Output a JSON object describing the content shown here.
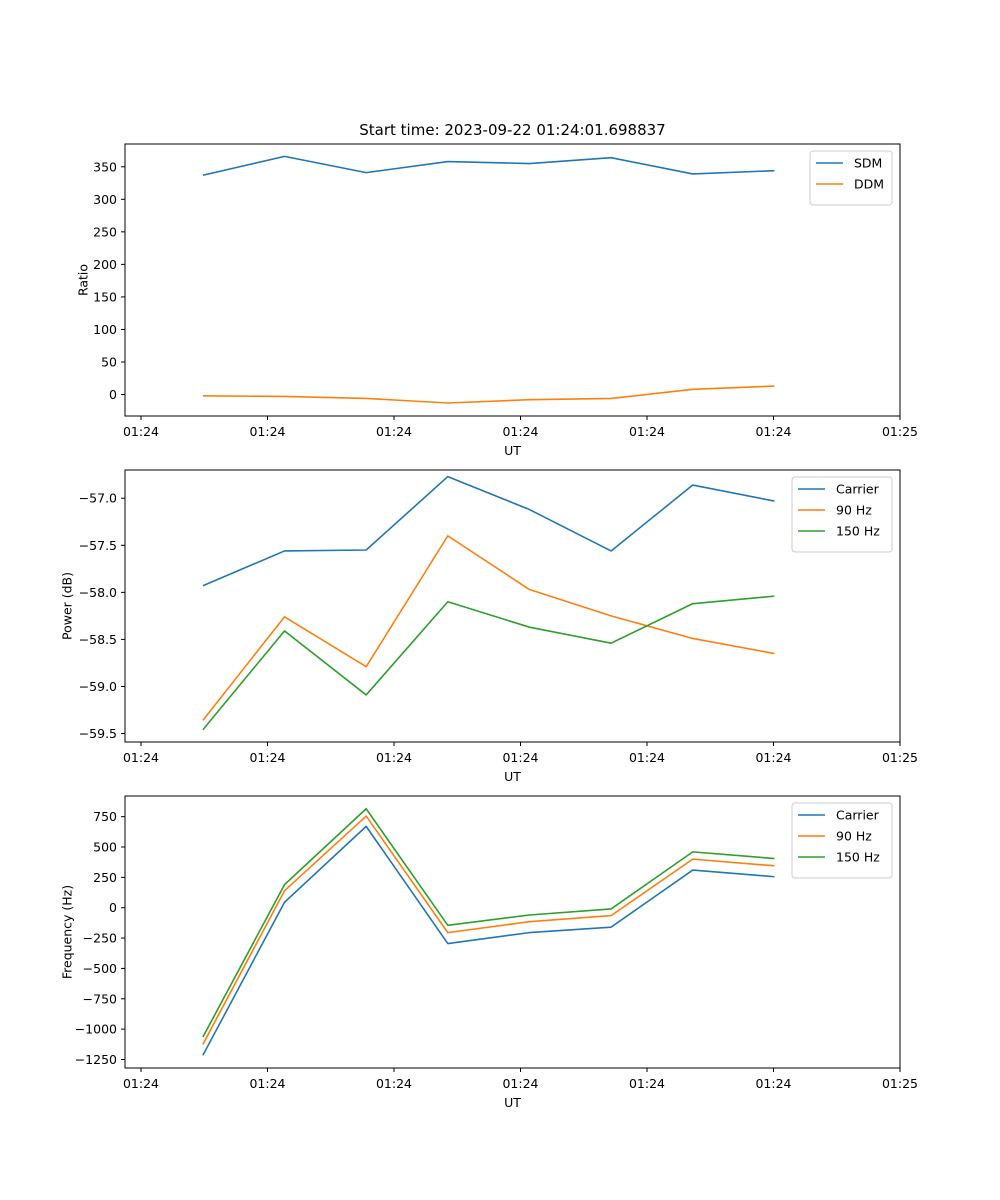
{
  "figure_title": "Start time: 2023-09-22 01:24:01.698837",
  "chart_data": [
    {
      "type": "line",
      "title": "Start time: 2023-09-22 01:24:01.698837",
      "xlabel": "UT",
      "ylabel": "Ratio",
      "x_tick_labels": [
        "01:24",
        "01:24",
        "01:24",
        "01:24",
        "01:24",
        "01:24",
        "01:25"
      ],
      "x": [
        0.5,
        1.15,
        1.8,
        2.45,
        3.1,
        3.75,
        4.4,
        5.05
      ],
      "xlim": [
        -0.12,
        6.05
      ],
      "ylim": [
        -33,
        385
      ],
      "yticks": [
        0,
        50,
        100,
        150,
        200,
        250,
        300,
        350
      ],
      "legend_position": "top-right",
      "grid": false,
      "series": [
        {
          "name": "SDM",
          "color": "#1f77b4",
          "values": [
            337,
            366,
            341,
            358,
            355,
            364,
            339,
            344
          ]
        },
        {
          "name": "DDM",
          "color": "#ff7f0e",
          "values": [
            -2,
            -3,
            -6,
            -13,
            -8,
            -6,
            8,
            13
          ]
        }
      ]
    },
    {
      "type": "line",
      "title": "",
      "xlabel": "UT",
      "ylabel": "Power (dB)",
      "x_tick_labels": [
        "01:24",
        "01:24",
        "01:24",
        "01:24",
        "01:24",
        "01:24",
        "01:25"
      ],
      "x": [
        0.5,
        1.15,
        1.8,
        2.45,
        3.1,
        3.75,
        4.4,
        5.05
      ],
      "xlim": [
        -0.12,
        6.05
      ],
      "ylim": [
        -59.59,
        -56.7
      ],
      "yticks": [
        -59.5,
        -59.0,
        -58.5,
        -58.0,
        -57.5,
        -57.0
      ],
      "ytick_labels": [
        "−59.5",
        "−59.0",
        "−58.5",
        "−58.0",
        "−57.5",
        "−57.0"
      ],
      "legend_position": "top-right",
      "grid": false,
      "series": [
        {
          "name": "Carrier",
          "color": "#1f77b4",
          "values": [
            -57.93,
            -57.56,
            -57.55,
            -56.77,
            -57.12,
            -57.56,
            -56.86,
            -57.03
          ]
        },
        {
          "name": "90 Hz",
          "color": "#ff7f0e",
          "values": [
            -59.36,
            -58.26,
            -58.79,
            -57.4,
            -57.97,
            -58.25,
            -58.49,
            -58.65
          ]
        },
        {
          "name": "150 Hz",
          "color": "#2ca02c",
          "values": [
            -59.46,
            -58.41,
            -59.09,
            -58.1,
            -58.37,
            -58.54,
            -58.12,
            -58.04
          ]
        }
      ]
    },
    {
      "type": "line",
      "title": "",
      "xlabel": "UT",
      "ylabel": "Frequency (Hz)",
      "x_tick_labels": [
        "01:24",
        "01:24",
        "01:24",
        "01:24",
        "01:24",
        "01:24",
        "01:25"
      ],
      "x": [
        0.5,
        1.15,
        1.8,
        2.45,
        3.1,
        3.75,
        4.4,
        5.05
      ],
      "xlim": [
        -0.12,
        6.05
      ],
      "ylim": [
        -1320,
        920
      ],
      "yticks": [
        -1250,
        -1000,
        -750,
        -500,
        -250,
        0,
        250,
        500,
        750
      ],
      "ytick_labels": [
        "−1250",
        "−1000",
        "−750",
        "−500",
        "−250",
        "0",
        "250",
        "500",
        "750"
      ],
      "legend_position": "top-right",
      "grid": false,
      "series": [
        {
          "name": "Carrier",
          "color": "#1f77b4",
          "values": [
            -1215,
            45,
            670,
            -295,
            -205,
            -160,
            310,
            255
          ]
        },
        {
          "name": "90 Hz",
          "color": "#ff7f0e",
          "values": [
            -1125,
            140,
            755,
            -205,
            -115,
            -65,
            400,
            345
          ]
        },
        {
          "name": "150 Hz",
          "color": "#2ca02c",
          "values": [
            -1065,
            190,
            815,
            -145,
            -60,
            -10,
            460,
            405
          ]
        }
      ]
    }
  ]
}
